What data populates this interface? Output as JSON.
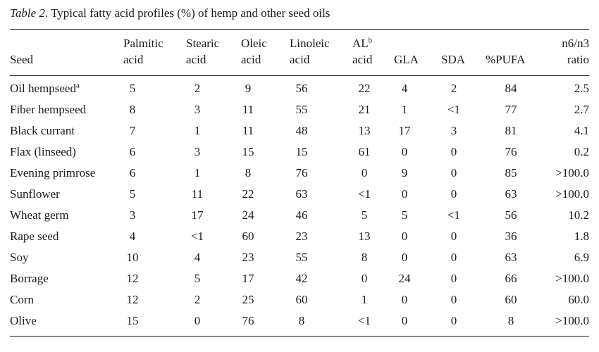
{
  "caption": {
    "label": "Table 2",
    "text": ". Typical fatty acid profiles (%) of hemp and other seed oils"
  },
  "headers": {
    "seed": "Seed",
    "palmitic_1": "Palmitic",
    "palmitic_2": "acid",
    "stearic_1": "Stearic",
    "stearic_2": "acid",
    "oleic_1": "Oleic",
    "oleic_2": "acid",
    "linoleic_1": "Linoleic",
    "linoleic_2": "acid",
    "al_1": "AL",
    "al_sup": "b",
    "al_2": "acid",
    "gla": "GLA",
    "sda": "SDA",
    "pufa": "%PUFA",
    "ratio_1": "n6/n3",
    "ratio_2": "ratio"
  },
  "rows": [
    {
      "seed": "Oil hempseed",
      "sup": "a",
      "palmitic": "5",
      "stearic": "2",
      "oleic": "9",
      "linoleic": "56",
      "al": "22",
      "gla": "4",
      "sda": "2",
      "pufa": "84",
      "ratio": "2.5"
    },
    {
      "seed": "Fiber hempseed",
      "sup": "",
      "palmitic": "8",
      "stearic": "3",
      "oleic": "11",
      "linoleic": "55",
      "al": "21",
      "gla": "1",
      "sda": "<1",
      "pufa": "77",
      "ratio": "2.7"
    },
    {
      "seed": "Black currant",
      "sup": "",
      "palmitic": "7",
      "stearic": "1",
      "oleic": "11",
      "linoleic": "48",
      "al": "13",
      "gla": "17",
      "sda": "3",
      "pufa": "81",
      "ratio": "4.1"
    },
    {
      "seed": "Flax (linseed)",
      "sup": "",
      "palmitic": "6",
      "stearic": "3",
      "oleic": "15",
      "linoleic": "15",
      "al": "61",
      "gla": "0",
      "sda": "0",
      "pufa": "76",
      "ratio": "0.2"
    },
    {
      "seed": "Evening primrose",
      "sup": "",
      "palmitic": "6",
      "stearic": "1",
      "oleic": "8",
      "linoleic": "76",
      "al": "0",
      "gla": "9",
      "sda": "0",
      "pufa": "85",
      "ratio": ">100.0"
    },
    {
      "seed": "Sunflower",
      "sup": "",
      "palmitic": "5",
      "stearic": "11",
      "oleic": "22",
      "linoleic": "63",
      "al": "<1",
      "gla": "0",
      "sda": "0",
      "pufa": "63",
      "ratio": ">100.0"
    },
    {
      "seed": "Wheat germ",
      "sup": "",
      "palmitic": "3",
      "stearic": "17",
      "oleic": "24",
      "linoleic": "46",
      "al": "5",
      "gla": "5",
      "sda": "<1",
      "pufa": "56",
      "ratio": "10.2"
    },
    {
      "seed": "Rape seed",
      "sup": "",
      "palmitic": "4",
      "stearic": "<1",
      "oleic": "60",
      "linoleic": "23",
      "al": "13",
      "gla": "0",
      "sda": "0",
      "pufa": "36",
      "ratio": "1.8"
    },
    {
      "seed": "Soy",
      "sup": "",
      "palmitic": "10",
      "stearic": "4",
      "oleic": "23",
      "linoleic": "55",
      "al": "8",
      "gla": "0",
      "sda": "0",
      "pufa": "63",
      "ratio": "6.9"
    },
    {
      "seed": "Borrage",
      "sup": "",
      "palmitic": "12",
      "stearic": "5",
      "oleic": "17",
      "linoleic": "42",
      "al": "0",
      "gla": "24",
      "sda": "0",
      "pufa": "66",
      "ratio": ">100.0"
    },
    {
      "seed": "Corn",
      "sup": "",
      "palmitic": "12",
      "stearic": "2",
      "oleic": "25",
      "linoleic": "60",
      "al": "1",
      "gla": "0",
      "sda": "0",
      "pufa": "60",
      "ratio": "60.0"
    },
    {
      "seed": "Olive",
      "sup": "",
      "palmitic": "15",
      "stearic": "0",
      "oleic": "76",
      "linoleic": "8",
      "al": "<1",
      "gla": "0",
      "sda": "0",
      "pufa": "8",
      "ratio": ">100.0"
    }
  ]
}
